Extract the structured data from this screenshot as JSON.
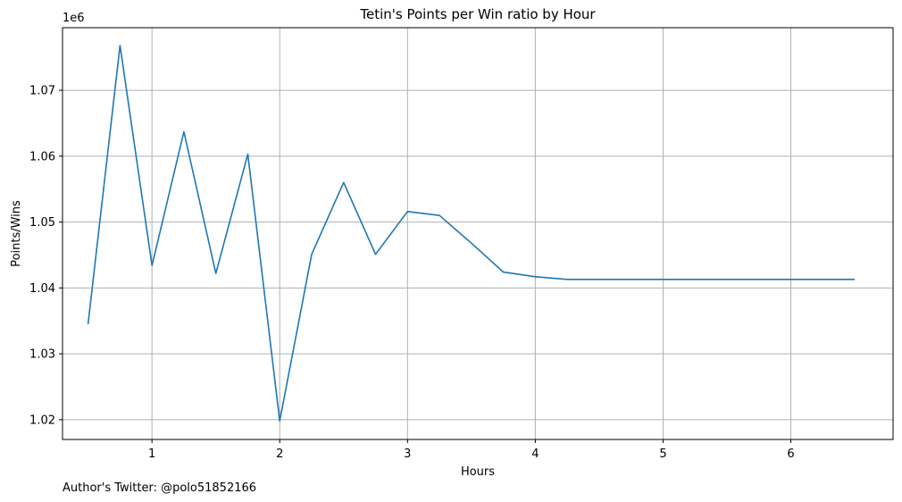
{
  "chart_data": {
    "type": "line",
    "title": "Tetin's Points per Win ratio by Hour",
    "xlabel": "Hours",
    "ylabel": "Points/Wins",
    "y_offset_label": "1e6",
    "y_scale_factor": 1000000,
    "xlim": [
      0.3,
      6.8
    ],
    "ylim": [
      1.017,
      1.0795
    ],
    "xticks": [
      1,
      2,
      3,
      4,
      5,
      6
    ],
    "yticks": [
      1.02,
      1.03,
      1.04,
      1.05,
      1.06,
      1.07
    ],
    "grid": true,
    "series": [
      {
        "name": "",
        "color": "#1f77b4",
        "x": [
          0.5,
          0.75,
          1.0,
          1.25,
          1.5,
          1.75,
          2.0,
          2.25,
          2.5,
          2.75,
          3.0,
          3.25,
          3.5,
          3.75,
          4.0,
          4.25,
          4.5,
          4.75,
          5.0,
          5.25,
          5.5,
          5.75,
          6.0,
          6.25,
          6.5
        ],
        "y": [
          1.0345,
          1.0768,
          1.0434,
          1.0637,
          1.0422,
          1.0603,
          1.0198,
          1.0451,
          1.056,
          1.0451,
          1.0516,
          1.051,
          1.0468,
          1.0424,
          1.0417,
          1.0413,
          1.0413,
          1.0413,
          1.0413,
          1.0413,
          1.0413,
          1.0413,
          1.0413,
          1.0413,
          1.0413
        ]
      }
    ]
  },
  "footer": {
    "text": "Author's Twitter: @polo51852166"
  }
}
